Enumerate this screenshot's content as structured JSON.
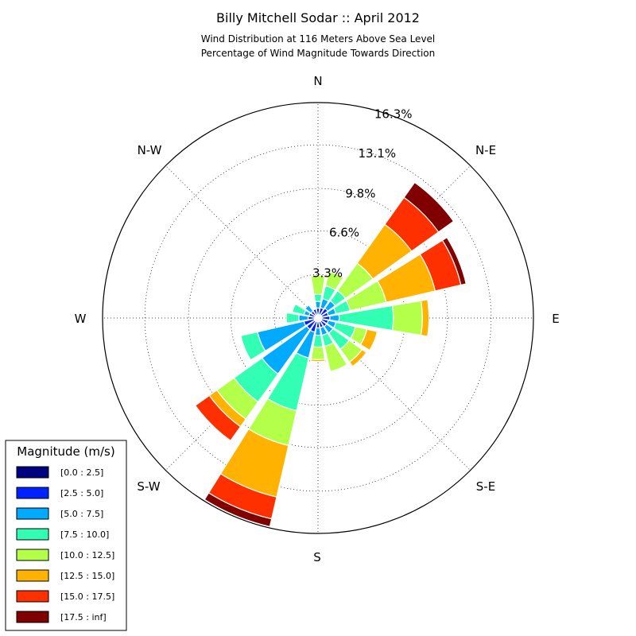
{
  "title": "Billy Mitchell Sodar :: April 2012",
  "subtitle_lines": [
    "Wind Distribution at 116 Meters Above Sea Level",
    "Percentage of Wind Magnitude Towards Direction"
  ],
  "chart_data": {
    "type": "windrose",
    "title": "Billy Mitchell Sodar :: April 2012",
    "subtitle": "Wind Distribution at 116 Meters Above Sea Level / Percentage of Wind Magnitude Towards Direction",
    "radial_unit": "%",
    "radial_max": 16.3,
    "ring_labels": [
      "3.3%",
      "6.6%",
      "9.8%",
      "13.1%",
      "16.3%"
    ],
    "ring_values": [
      3.3,
      6.6,
      9.8,
      13.1,
      16.3
    ],
    "direction_labels": [
      "N",
      "N-E",
      "E",
      "S-E",
      "S",
      "S-W",
      "W",
      "N-W"
    ],
    "grid": true,
    "legend": {
      "title": "Magnitude (m/s)",
      "placement": "bottom-left",
      "bins": [
        "[0.0 : 2.5]",
        "[2.5 : 5.0]",
        "[5.0 : 7.5]",
        "[7.5 : 10.0]",
        "[10.0 : 12.5]",
        "[12.5 : 15.0]",
        "[15.0 : 17.5]",
        "[17.5 : inf]"
      ],
      "colors": [
        "#000080",
        "#0022ff",
        "#00aaff",
        "#33ffb4",
        "#b4ff4a",
        "#ffb300",
        "#ff3000",
        "#800000"
      ]
    },
    "sectors": [
      {
        "direction_deg": 0,
        "cumulative": [
          0.25,
          0.75,
          1.25,
          1.8,
          3.2
        ]
      },
      {
        "direction_deg": 22.5,
        "cumulative": [
          0.25,
          0.8,
          1.5,
          2.5,
          3.6
        ]
      },
      {
        "direction_deg": 45,
        "cumulative": [
          0.3,
          0.9,
          1.6,
          2.55,
          5.1,
          8.7,
          11.2,
          12.6
        ]
      },
      {
        "direction_deg": 67.5,
        "cumulative": [
          0.3,
          0.8,
          1.4,
          2.5,
          5.3,
          9.1,
          11.1,
          11.5
        ]
      },
      {
        "direction_deg": 90,
        "cumulative": [
          0.3,
          0.9,
          1.6,
          5.7,
          7.9,
          8.4
        ]
      },
      {
        "direction_deg": 112.5,
        "cumulative": [
          0.3,
          0.8,
          1.4,
          2.9,
          3.8,
          4.6
        ]
      },
      {
        "direction_deg": 135,
        "cumulative": [
          0.3,
          0.8,
          1.4,
          2.9,
          4.1,
          4.5
        ]
      },
      {
        "direction_deg": 157.5,
        "cumulative": [
          0.3,
          0.75,
          1.35,
          2.2,
          4.15
        ]
      },
      {
        "direction_deg": 180,
        "cumulative": [
          0.25,
          0.75,
          1.3,
          2.2,
          3.15,
          3.3
        ]
      },
      {
        "direction_deg": 202.5,
        "cumulative": [
          0.3,
          1.1,
          3.1,
          7.2,
          9.9,
          13.9,
          15.6,
          16.2
        ]
      },
      {
        "direction_deg": 225,
        "cumulative": [
          0.3,
          1.05,
          5.2,
          7.8,
          9.4,
          10.1,
          11.4
        ]
      },
      {
        "direction_deg": 247.5,
        "cumulative": [
          0.3,
          1.1,
          4.7,
          6.0
        ]
      },
      {
        "direction_deg": 270,
        "cumulative": [
          0.25,
          0.75,
          1.45,
          2.4
        ]
      },
      {
        "direction_deg": 292.5,
        "cumulative": [
          0.25,
          0.7,
          1.1,
          2.0
        ]
      },
      {
        "direction_deg": 315,
        "cumulative": [
          0.25,
          0.65,
          1.2
        ]
      },
      {
        "direction_deg": 337.5,
        "cumulative": [
          0.25,
          0.7
        ]
      }
    ]
  }
}
